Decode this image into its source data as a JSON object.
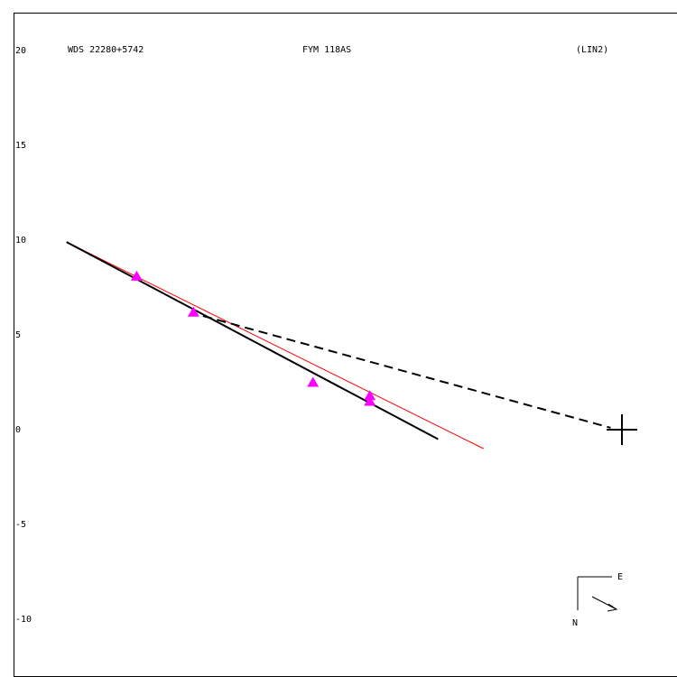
{
  "chart_data": {
    "type": "scatter",
    "header": {
      "left": "WDS 22280+5742",
      "center": "FYM 118AS",
      "right": "(LIN2)"
    },
    "y_ticks": [
      {
        "value": 20,
        "label": "20"
      },
      {
        "value": 15,
        "label": "15"
      },
      {
        "value": 10,
        "label": "10"
      },
      {
        "value": 5,
        "label": "5"
      },
      {
        "value": 0,
        "label": "0"
      },
      {
        "value": -5,
        "label": "-5"
      },
      {
        "value": -10,
        "label": "-10"
      }
    ],
    "ylim": [
      -13,
      22
    ],
    "grid": false,
    "primary_star": {
      "x": 0,
      "y": 0,
      "marker": "cross"
    },
    "observations": [
      {
        "x": -25.6,
        "y": 8.1
      },
      {
        "x": -22.6,
        "y": 6.2
      },
      {
        "x": -16.3,
        "y": 2.5
      },
      {
        "x": -13.3,
        "y": 1.8
      },
      {
        "x": -13.3,
        "y": 1.5
      }
    ],
    "fit_line_black": {
      "from": [
        -29.3,
        9.9
      ],
      "to": [
        -9.7,
        -0.5
      ],
      "color": "#000000"
    },
    "fit_line_red": {
      "from": [
        -29.3,
        9.9
      ],
      "to": [
        -7.3,
        -1.0
      ],
      "color": "#ff0000"
    },
    "dashed_line": {
      "from": [
        -22.1,
        6.0
      ],
      "to": [
        -0.6,
        0.1
      ],
      "color": "#000000"
    },
    "point_color": "#ff00ff",
    "orientation": {
      "east_label": "E",
      "north_label": "N"
    }
  }
}
